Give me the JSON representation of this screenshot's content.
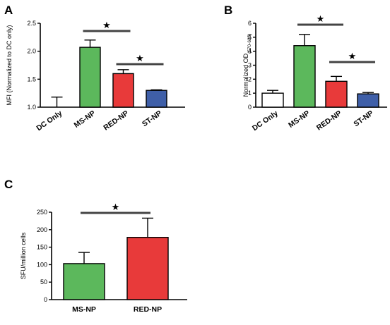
{
  "chart_data": [
    {
      "panel": "A",
      "type": "bar",
      "ylabel": "MFI (Normalized to DC only)",
      "ylim": [
        1.0,
        2.5
      ],
      "yticks": [
        1.0,
        1.5,
        2.0,
        2.5
      ],
      "ytick_labels": [
        "1.0",
        "1.5",
        "2.0",
        "2.5"
      ],
      "categories": [
        "DC Only",
        "MS-NP",
        "RED-NP",
        "ST-NP"
      ],
      "values": [
        1.0,
        2.07,
        1.6,
        1.3
      ],
      "errors": [
        0.18,
        0.13,
        0.07,
        0.01
      ],
      "colors": [
        "#ffffff",
        "#5cb85c",
        "#e83a3a",
        "#3f5fa8"
      ],
      "significance": [
        {
          "from": 1,
          "to": 2,
          "symbol": "★"
        },
        {
          "from": 2,
          "to": 3,
          "symbol": "★"
        }
      ]
    },
    {
      "panel": "B",
      "type": "bar",
      "ylabel": "Normalized OD",
      "ylabel_sub": "(570-635)",
      "ylim": [
        0,
        6
      ],
      "yticks": [
        0,
        1,
        2,
        3,
        4,
        5,
        6
      ],
      "ytick_labels": [
        "0",
        "1",
        "2",
        "3",
        "4",
        "5",
        "6"
      ],
      "categories": [
        "DC Only",
        "MS-NP",
        "RED-NP",
        "ST-NP"
      ],
      "values": [
        1.0,
        4.4,
        1.85,
        0.95
      ],
      "errors": [
        0.2,
        0.8,
        0.35,
        0.1
      ],
      "colors": [
        "#ffffff",
        "#5cb85c",
        "#e83a3a",
        "#3f5fa8"
      ],
      "significance": [
        {
          "from": 1,
          "to": 2,
          "symbol": "★"
        },
        {
          "from": 2,
          "to": 3,
          "symbol": "★"
        }
      ]
    },
    {
      "panel": "C",
      "type": "bar",
      "ylabel": "SFU/million cells",
      "ylim": [
        0,
        250
      ],
      "yticks": [
        0,
        50,
        100,
        150,
        200,
        250
      ],
      "ytick_labels": [
        "0",
        "50",
        "100",
        "150",
        "200",
        "250"
      ],
      "categories": [
        "MS-NP",
        "RED-NP"
      ],
      "values": [
        103,
        178
      ],
      "errors": [
        32,
        55
      ],
      "colors": [
        "#5cb85c",
        "#e83a3a"
      ],
      "significance": [
        {
          "from": 0,
          "to": 1,
          "symbol": "★"
        }
      ]
    }
  ]
}
